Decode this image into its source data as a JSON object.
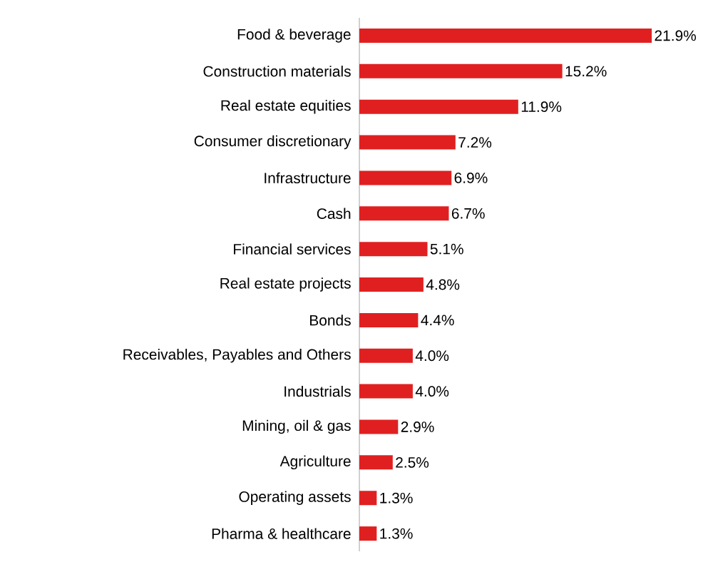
{
  "chart_data": {
    "type": "bar",
    "orientation": "horizontal",
    "color": "#e02020",
    "categories": [
      "Food & beverage",
      "Construction materials",
      "Real estate equities",
      "Consumer discretionary",
      "Infrastructure",
      "Cash",
      "Financial services",
      "Real estate projects",
      "Bonds",
      "Receivables, Payables and Others",
      "Industrials",
      "Mining, oil & gas",
      "Agriculture",
      "Operating assets",
      "Pharma & healthcare"
    ],
    "values": [
      21.9,
      15.2,
      11.9,
      7.2,
      6.9,
      6.7,
      5.1,
      4.8,
      4.4,
      4.0,
      4.0,
      2.9,
      2.5,
      1.3,
      1.3
    ],
    "value_labels": [
      "21.9%",
      "15.2%",
      "11.9%",
      "7.2%",
      "6.9%",
      "6.7%",
      "5.1%",
      "4.8%",
      "4.4%",
      "4.0%",
      "4.0%",
      "2.9%",
      "2.5%",
      "1.3%",
      "1.3%"
    ]
  }
}
